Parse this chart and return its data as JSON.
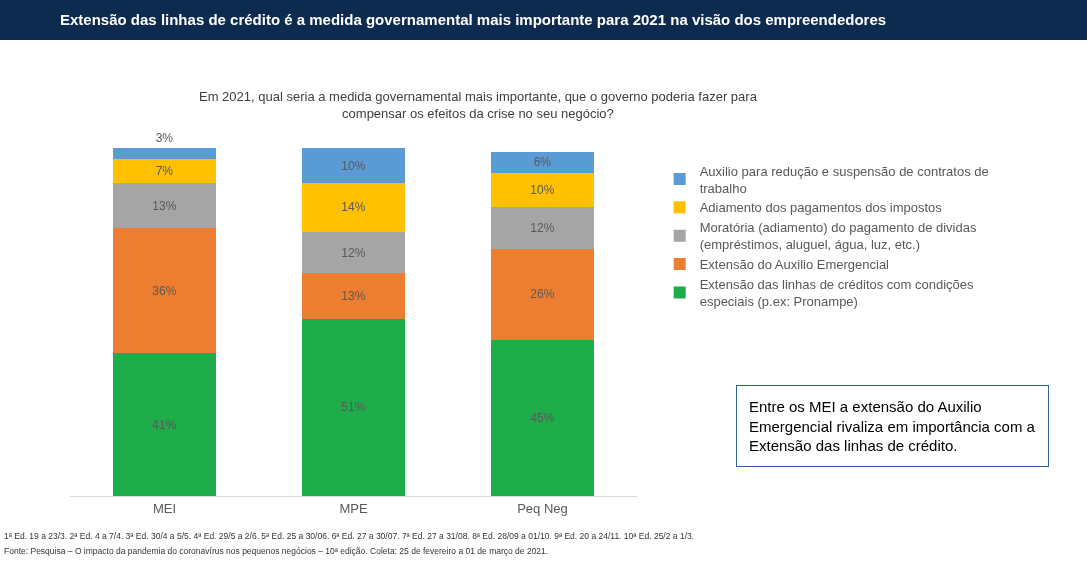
{
  "chart_data": {
    "type": "bar",
    "stacked": true,
    "legend": "right",
    "grid": false,
    "title": "Extensão das linhas de crédito é a medida governamental mais importante para 2021 na visão dos empreendedores",
    "subtitle": "Em 2021, qual seria a medida governamental mais importante, que o governo poderia fazer para compensar os efeitos da crise no seu negócio?",
    "categories": [
      "MEI",
      "MPE",
      "Peq Neg"
    ],
    "series": [
      {
        "name": "Extensão das linhas de créditos com condições especiais (p.ex: Pronampe)",
        "color": "#1fad4b",
        "values": [
          41,
          51,
          45
        ],
        "value_labels": [
          "41%",
          "51%",
          "45%"
        ]
      },
      {
        "name": "Extensão do Auxilio Emergencial",
        "color": "#ed7d31",
        "values": [
          36,
          13,
          26
        ],
        "value_labels": [
          "36%",
          "13%",
          "26%"
        ]
      },
      {
        "name": "Moratória (adiamento) do pagamento de dividas (empréstimos, aluguel, água, luz, etc.)",
        "color": "#a5a5a5",
        "values": [
          13,
          12,
          12
        ],
        "value_labels": [
          "13%",
          "12%",
          "12%"
        ]
      },
      {
        "name": "Adiamento dos pagamentos dos impostos",
        "color": "#ffc000",
        "values": [
          7,
          14,
          10
        ],
        "value_labels": [
          "7%",
          "14%",
          "10%"
        ]
      },
      {
        "name": "Auxilio para redução e suspensão de contratos de trabalho",
        "color": "#5b9bd5",
        "values": [
          3,
          10,
          6
        ],
        "value_labels": [
          "3%",
          "10%",
          "6%"
        ]
      }
    ],
    "annotations": [
      "Entre os MEI a extensão do Auxilio Emergencial rivaliza em importância com a Extensão das linhas de crédito.",
      "1ª Ed. 19 a 23/3. 2ª Ed. 4 a 7/4. 3ª Ed. 30/4 a 5/5. 4ª Ed. 29/5 a 2/6. 5ª Ed. 25 a 30/06. 6ª Ed. 27 a 30/07. 7ª Ed. 27 a 31/08. 8ª Ed. 28/09 a 01/10. 9ª Ed. 20 a 24/11. 10ª Ed. 25/2 a 1/3.",
      "Fonte: Pesquisa – O impacto da pandemia do coronavírus nos pequenos negócios – 10ª edição. Coleta: 25 de fevereiro a 01 de março de 2021."
    ]
  }
}
